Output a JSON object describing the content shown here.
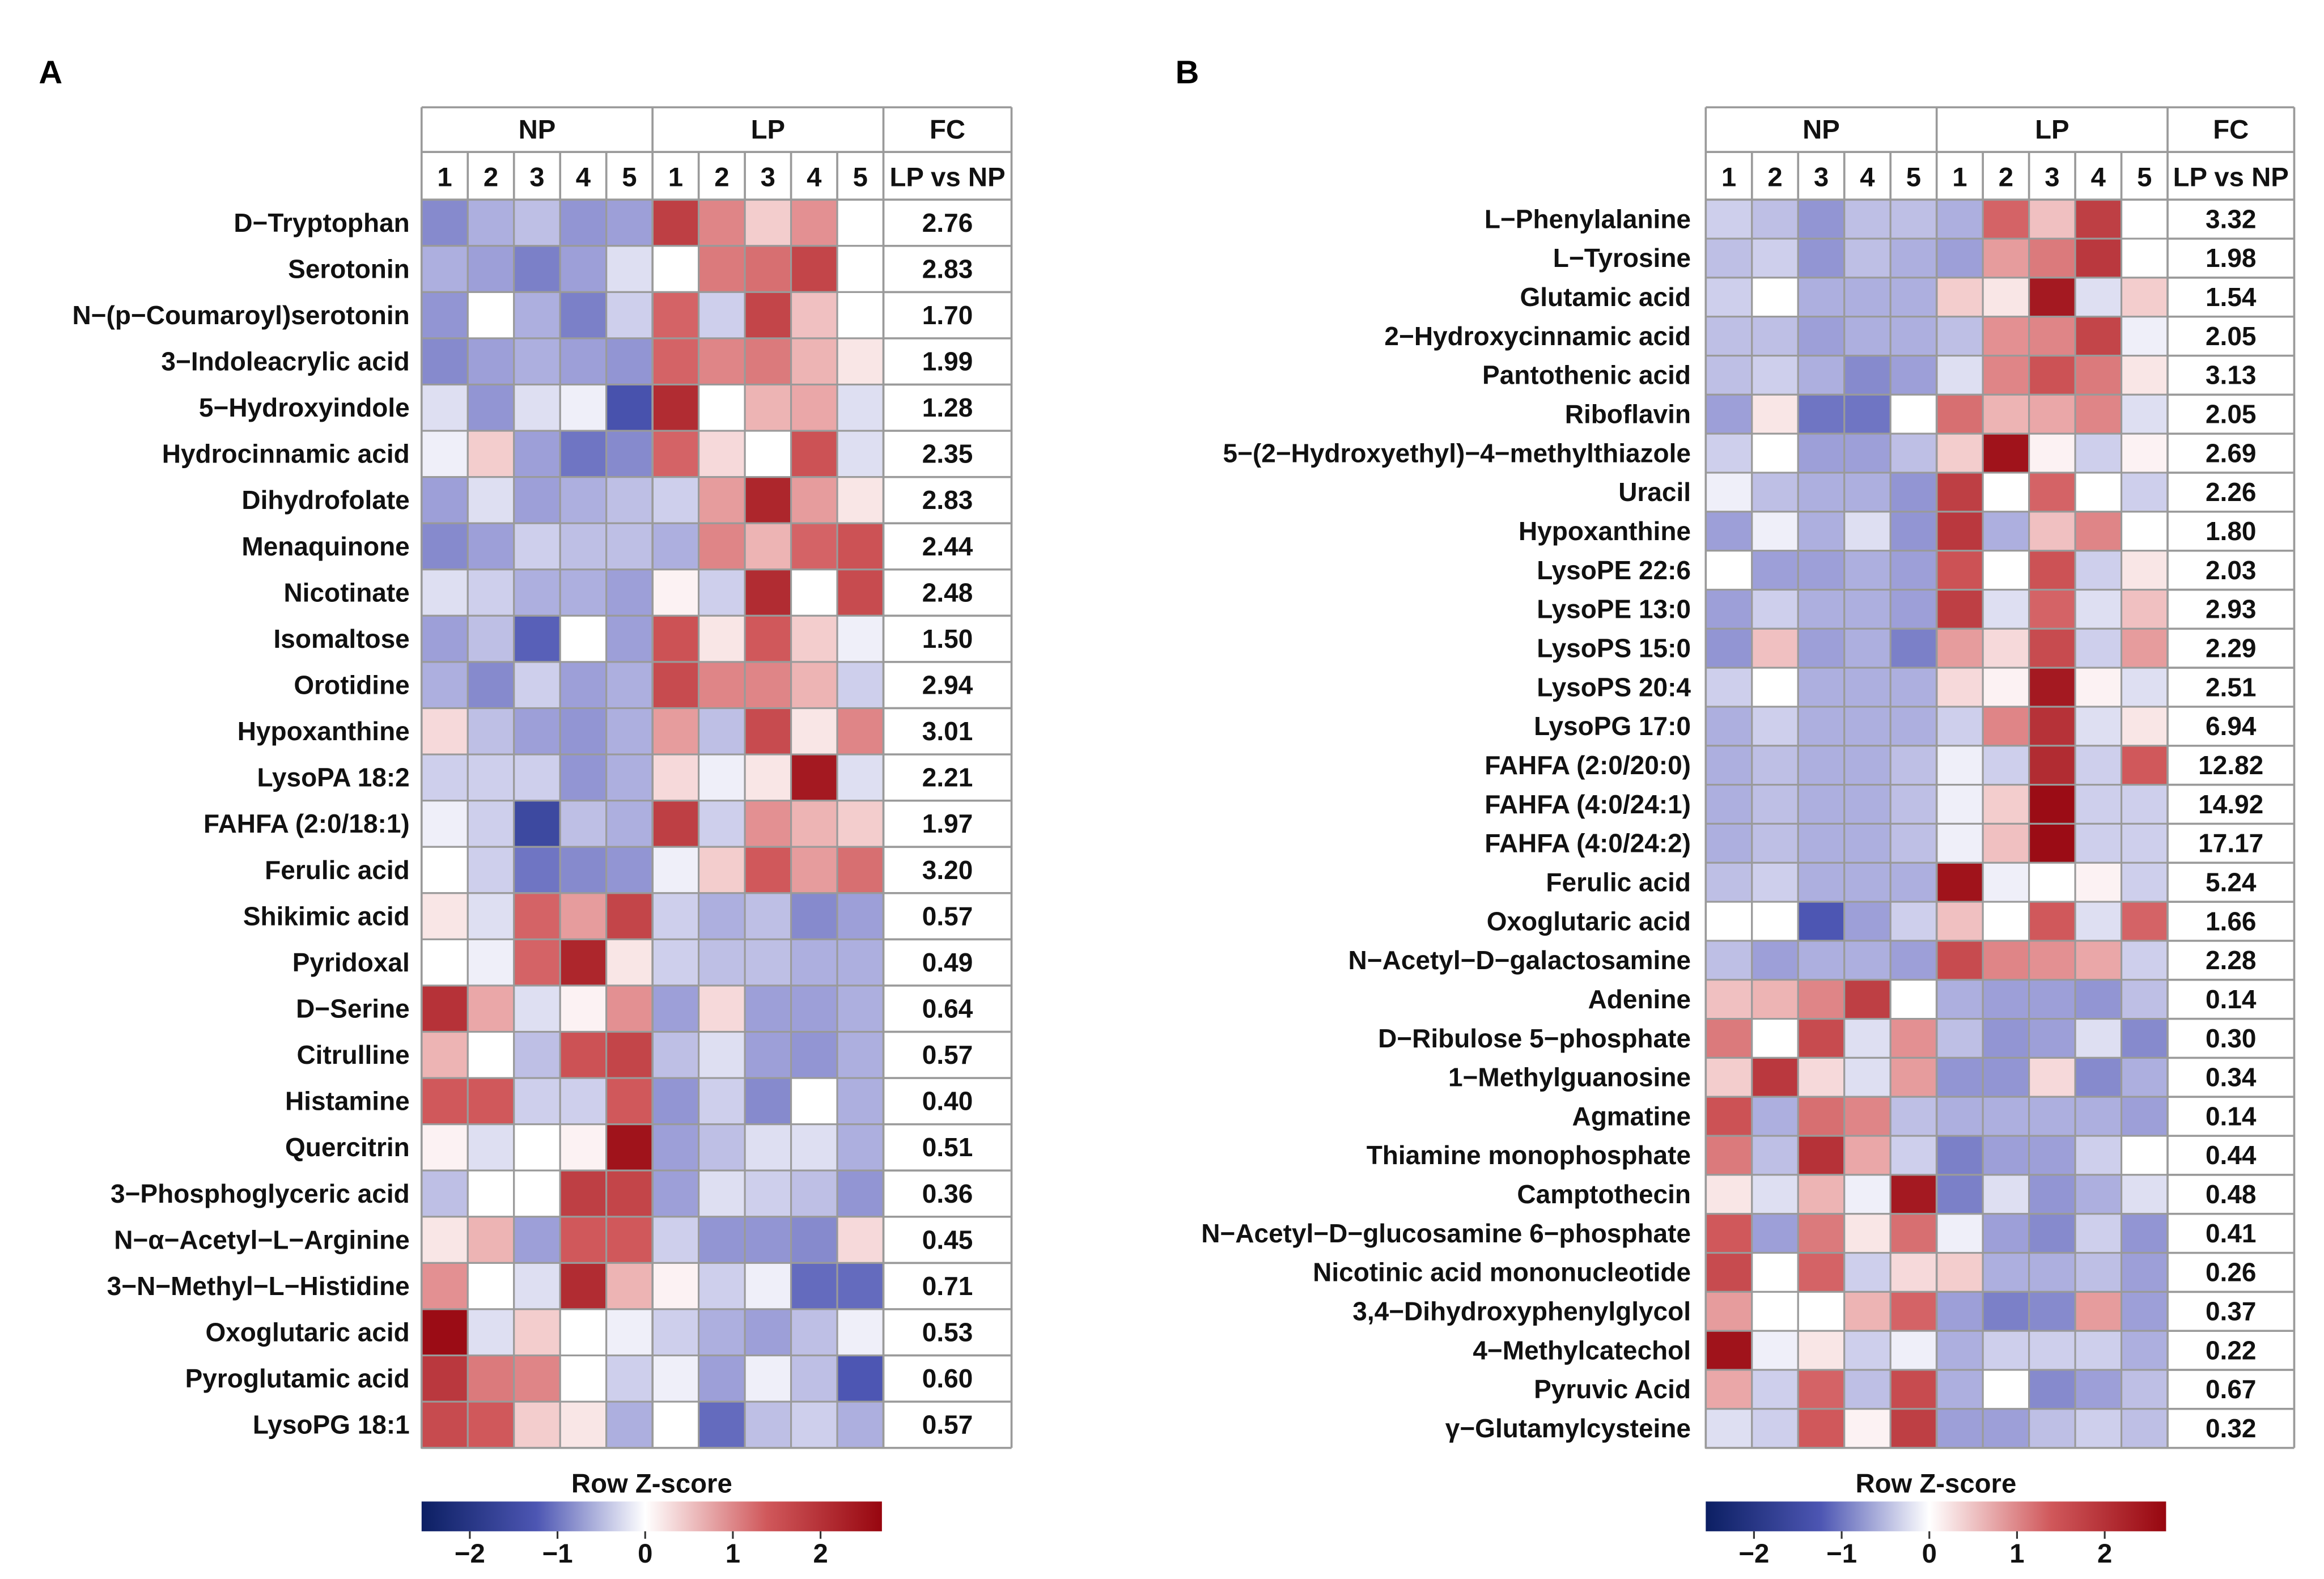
{
  "chart_data": [
    {
      "type": "heatmap",
      "panel": "A",
      "group_labels": [
        "NP",
        "LP",
        "FC"
      ],
      "column_labels": [
        "1",
        "2",
        "3",
        "4",
        "5",
        "1",
        "2",
        "3",
        "4",
        "5"
      ],
      "fc_header": "LP vs NP",
      "legend": {
        "title": "Row Z-score",
        "ticks": [
          "−2",
          "−1",
          "0",
          "1",
          "2"
        ],
        "tick_values": [
          -2,
          -1,
          0,
          1,
          2
        ],
        "range": [
          -2.55,
          2.7
        ]
      },
      "rows": [
        {
          "name": "D−Tryptophan",
          "fc": "2.76",
          "z": [
            -0.8,
            -0.5,
            -0.4,
            -0.7,
            -0.6,
            1.8,
            1.0,
            0.4,
            0.9,
            0.0
          ]
        },
        {
          "name": "Serotonin",
          "fc": "2.83",
          "z": [
            -0.5,
            -0.6,
            -0.9,
            -0.6,
            -0.2,
            0.0,
            1.1,
            1.2,
            1.7,
            0.0
          ]
        },
        {
          "name": "N−(p−Coumaroyl)serotonin",
          "fc": "1.70",
          "z": [
            -0.7,
            0.0,
            -0.5,
            -0.9,
            -0.3,
            1.3,
            -0.3,
            1.7,
            0.5,
            0.0
          ]
        },
        {
          "name": "3−Indoleacrylic acid",
          "fc": "1.99",
          "z": [
            -0.8,
            -0.6,
            -0.5,
            -0.6,
            -0.7,
            1.3,
            1.0,
            1.1,
            0.6,
            0.2
          ]
        },
        {
          "name": "5−Hydroxyindole",
          "fc": "1.28",
          "z": [
            -0.2,
            -0.7,
            -0.2,
            -0.1,
            -1.4,
            2.1,
            0.0,
            0.6,
            0.7,
            -0.2
          ]
        },
        {
          "name": "Hydrocinnamic acid",
          "fc": "2.35",
          "z": [
            -0.1,
            0.4,
            -0.6,
            -1.0,
            -0.8,
            1.3,
            0.3,
            0.0,
            1.5,
            -0.2
          ]
        },
        {
          "name": "Dihydrofolate",
          "fc": "2.83",
          "z": [
            -0.6,
            -0.2,
            -0.6,
            -0.5,
            -0.4,
            -0.3,
            0.8,
            2.2,
            0.8,
            0.2
          ]
        },
        {
          "name": "Menaquinone",
          "fc": "2.44",
          "z": [
            -0.8,
            -0.6,
            -0.3,
            -0.4,
            -0.4,
            -0.5,
            1.0,
            0.6,
            1.3,
            1.5
          ]
        },
        {
          "name": "Nicotinate",
          "fc": "2.48",
          "z": [
            -0.2,
            -0.3,
            -0.5,
            -0.5,
            -0.6,
            0.1,
            -0.3,
            2.1,
            0.0,
            1.6
          ]
        },
        {
          "name": "Isomaltose",
          "fc": "1.50",
          "z": [
            -0.6,
            -0.4,
            -1.2,
            0.0,
            -0.6,
            1.5,
            0.2,
            1.4,
            0.4,
            -0.1
          ]
        },
        {
          "name": "Orotidine",
          "fc": "2.94",
          "z": [
            -0.5,
            -0.8,
            -0.3,
            -0.6,
            -0.5,
            1.6,
            1.0,
            1.0,
            0.6,
            -0.3
          ]
        },
        {
          "name": "Hypoxanthine",
          "fc": "3.01",
          "z": [
            0.3,
            -0.4,
            -0.6,
            -0.7,
            -0.5,
            0.8,
            -0.4,
            1.6,
            0.2,
            1.0
          ]
        },
        {
          "name": "LysoPA 18:2",
          "fc": "2.21",
          "z": [
            -0.3,
            -0.3,
            -0.3,
            -0.7,
            -0.5,
            0.3,
            -0.1,
            0.2,
            2.4,
            -0.2
          ]
        },
        {
          "name": "FAHFA (2:0/18:1)",
          "fc": "1.97",
          "z": [
            -0.1,
            -0.3,
            -1.6,
            -0.4,
            -0.5,
            1.8,
            -0.3,
            0.9,
            0.6,
            0.4
          ]
        },
        {
          "name": "Ferulic acid",
          "fc": "3.20",
          "z": [
            0.0,
            -0.3,
            -1.0,
            -0.8,
            -0.7,
            -0.1,
            0.4,
            1.4,
            0.8,
            1.2
          ]
        },
        {
          "name": "Shikimic acid",
          "fc": "0.57",
          "z": [
            0.2,
            -0.2,
            1.3,
            0.8,
            1.7,
            -0.3,
            -0.5,
            -0.4,
            -0.8,
            -0.6
          ]
        },
        {
          "name": "Pyridoxal",
          "fc": "0.49",
          "z": [
            0.0,
            -0.1,
            1.3,
            2.2,
            0.2,
            -0.3,
            -0.4,
            -0.4,
            -0.5,
            -0.5
          ]
        },
        {
          "name": "D−Serine",
          "fc": "0.64",
          "z": [
            2.0,
            0.7,
            -0.2,
            0.1,
            0.9,
            -0.6,
            0.3,
            -0.6,
            -0.6,
            -0.5
          ]
        },
        {
          "name": "Citrulline",
          "fc": "0.57",
          "z": [
            0.6,
            0.0,
            -0.4,
            1.5,
            1.7,
            -0.4,
            -0.2,
            -0.6,
            -0.7,
            -0.5
          ]
        },
        {
          "name": "Histamine",
          "fc": "0.40",
          "z": [
            1.4,
            1.4,
            -0.3,
            -0.3,
            1.4,
            -0.7,
            -0.3,
            -0.8,
            0.0,
            -0.5
          ]
        },
        {
          "name": "Quercitrin",
          "fc": "0.51",
          "z": [
            0.1,
            -0.2,
            0.0,
            0.1,
            2.5,
            -0.6,
            -0.4,
            -0.2,
            -0.2,
            -0.5
          ]
        },
        {
          "name": "3−Phosphoglyceric acid",
          "fc": "0.36",
          "z": [
            -0.4,
            0.0,
            0.0,
            1.8,
            1.7,
            -0.6,
            -0.2,
            -0.3,
            -0.4,
            -0.7
          ]
        },
        {
          "name": "N−α−Acetyl−L−Arginine",
          "fc": "0.45",
          "z": [
            0.2,
            0.6,
            -0.6,
            1.4,
            1.4,
            -0.3,
            -0.7,
            -0.7,
            -0.8,
            0.3
          ]
        },
        {
          "name": "3−N−Methyl−L−Histidine",
          "fc": "0.71",
          "z": [
            0.9,
            0.0,
            -0.2,
            2.1,
            0.6,
            0.1,
            -0.3,
            -0.1,
            -1.1,
            -1.1
          ]
        },
        {
          "name": "Oxoglutaric acid",
          "fc": "0.53",
          "z": [
            2.6,
            -0.2,
            0.4,
            0.0,
            -0.1,
            -0.3,
            -0.5,
            -0.6,
            -0.4,
            -0.1
          ]
        },
        {
          "name": "Pyroglutamic acid",
          "fc": "0.60",
          "z": [
            1.9,
            1.1,
            1.0,
            0.0,
            -0.3,
            -0.1,
            -0.6,
            -0.1,
            -0.4,
            -1.3
          ]
        },
        {
          "name": "LysoPG 18:1",
          "fc": "0.57",
          "z": [
            1.6,
            1.4,
            0.4,
            0.2,
            -0.5,
            0.0,
            -1.1,
            -0.4,
            -0.3,
            -0.5
          ]
        }
      ]
    },
    {
      "type": "heatmap",
      "panel": "B",
      "group_labels": [
        "NP",
        "LP",
        "FC"
      ],
      "column_labels": [
        "1",
        "2",
        "3",
        "4",
        "5",
        "1",
        "2",
        "3",
        "4",
        "5"
      ],
      "fc_header": "LP vs NP",
      "legend": {
        "title": "Row Z-score",
        "ticks": [
          "−2",
          "−1",
          "0",
          "1",
          "2"
        ],
        "tick_values": [
          -2,
          -1,
          0,
          1,
          2
        ],
        "range": [
          -2.55,
          2.7
        ]
      },
      "rows": [
        {
          "name": "L−Phenylalanine",
          "fc": "3.32",
          "z": [
            -0.3,
            -0.4,
            -0.7,
            -0.4,
            -0.4,
            -0.5,
            1.3,
            0.5,
            1.8,
            0.0
          ]
        },
        {
          "name": "L−Tyrosine",
          "fc": "1.98",
          "z": [
            -0.4,
            -0.3,
            -0.7,
            -0.4,
            -0.5,
            -0.6,
            0.8,
            1.1,
            1.9,
            0.0
          ]
        },
        {
          "name": "Glutamic acid",
          "fc": "1.54",
          "z": [
            -0.3,
            0.0,
            -0.5,
            -0.5,
            -0.5,
            0.4,
            0.2,
            2.4,
            -0.2,
            0.4
          ]
        },
        {
          "name": "2−Hydroxycinnamic acid",
          "fc": "2.05",
          "z": [
            -0.4,
            -0.4,
            -0.6,
            -0.5,
            -0.5,
            -0.4,
            0.9,
            1.0,
            1.7,
            -0.1
          ]
        },
        {
          "name": "Pantothenic acid",
          "fc": "3.13",
          "z": [
            -0.4,
            -0.3,
            -0.5,
            -0.8,
            -0.6,
            -0.2,
            1.0,
            1.5,
            1.1,
            0.2
          ]
        },
        {
          "name": "Riboflavin",
          "fc": "2.05",
          "z": [
            -0.6,
            0.2,
            -1.0,
            -1.0,
            0.0,
            1.2,
            0.6,
            0.7,
            1.0,
            -0.2
          ]
        },
        {
          "name": "5−(2−Hydroxyethyl)−4−methylthiazole",
          "fc": "2.69",
          "z": [
            -0.3,
            0.0,
            -0.6,
            -0.6,
            -0.4,
            0.4,
            2.5,
            0.1,
            -0.3,
            0.1
          ]
        },
        {
          "name": "Uracil",
          "fc": "2.26",
          "z": [
            -0.1,
            -0.4,
            -0.5,
            -0.5,
            -0.7,
            1.8,
            0.0,
            1.3,
            0.0,
            -0.3
          ]
        },
        {
          "name": "Hypoxanthine",
          "fc": "1.80",
          "z": [
            -0.6,
            -0.1,
            -0.5,
            -0.2,
            -0.7,
            1.9,
            -0.5,
            0.5,
            1.0,
            0.0
          ]
        },
        {
          "name": "LysoPE 22:6",
          "fc": "2.03",
          "z": [
            0.0,
            -0.6,
            -0.6,
            -0.5,
            -0.6,
            1.5,
            0.0,
            1.5,
            -0.3,
            0.2
          ]
        },
        {
          "name": "LysoPE 13:0",
          "fc": "2.93",
          "z": [
            -0.6,
            -0.3,
            -0.5,
            -0.5,
            -0.6,
            1.8,
            -0.2,
            1.3,
            -0.2,
            0.5
          ]
        },
        {
          "name": "LysoPS 15:0",
          "fc": "2.29",
          "z": [
            -0.7,
            0.5,
            -0.6,
            -0.5,
            -0.9,
            0.8,
            0.3,
            1.6,
            -0.3,
            0.8
          ]
        },
        {
          "name": "LysoPS 20:4",
          "fc": "2.51",
          "z": [
            -0.3,
            0.0,
            -0.5,
            -0.5,
            -0.5,
            0.3,
            0.1,
            2.4,
            0.1,
            -0.2
          ]
        },
        {
          "name": "LysoPG 17:0",
          "fc": "6.94",
          "z": [
            -0.5,
            -0.3,
            -0.5,
            -0.5,
            -0.5,
            -0.3,
            1.0,
            2.0,
            -0.2,
            0.2
          ]
        },
        {
          "name": "FAHFA (2:0/20:0)",
          "fc": "12.82",
          "z": [
            -0.5,
            -0.4,
            -0.5,
            -0.5,
            -0.4,
            -0.1,
            -0.3,
            2.1,
            -0.3,
            1.4
          ]
        },
        {
          "name": "FAHFA (4:0/24:1)",
          "fc": "14.92",
          "z": [
            -0.5,
            -0.4,
            -0.5,
            -0.5,
            -0.4,
            -0.1,
            0.4,
            2.6,
            -0.3,
            -0.3
          ]
        },
        {
          "name": "FAHFA (4:0/24:2)",
          "fc": "17.17",
          "z": [
            -0.5,
            -0.4,
            -0.5,
            -0.5,
            -0.4,
            -0.1,
            0.5,
            2.6,
            -0.3,
            -0.3
          ]
        },
        {
          "name": "Ferulic acid",
          "fc": "5.24",
          "z": [
            -0.4,
            -0.3,
            -0.5,
            -0.5,
            -0.5,
            2.5,
            -0.1,
            0.0,
            0.1,
            -0.3
          ]
        },
        {
          "name": "Oxoglutaric acid",
          "fc": "1.66",
          "z": [
            0.0,
            0.0,
            -1.3,
            -0.6,
            -0.3,
            0.5,
            0.0,
            1.4,
            -0.2,
            1.3
          ]
        },
        {
          "name": "N−Acetyl−D−galactosamine",
          "fc": "2.28",
          "z": [
            -0.4,
            -0.6,
            -0.5,
            -0.5,
            -0.6,
            1.6,
            1.0,
            0.9,
            0.7,
            -0.3
          ]
        },
        {
          "name": "Adenine",
          "fc": "0.14",
          "z": [
            0.5,
            0.6,
            1.0,
            1.8,
            0.0,
            -0.5,
            -0.6,
            -0.6,
            -0.7,
            -0.4
          ]
        },
        {
          "name": "D−Ribulose 5−phosphate",
          "fc": "0.30",
          "z": [
            1.1,
            0.0,
            1.6,
            -0.2,
            0.9,
            -0.4,
            -0.7,
            -0.6,
            -0.2,
            -0.8
          ]
        },
        {
          "name": "1−Methylguanosine",
          "fc": "0.34",
          "z": [
            0.4,
            1.9,
            0.3,
            -0.2,
            0.8,
            -0.7,
            -0.7,
            0.3,
            -0.8,
            -0.5
          ]
        },
        {
          "name": "Agmatine",
          "fc": "0.14",
          "z": [
            1.5,
            -0.5,
            1.2,
            1.0,
            -0.4,
            -0.5,
            -0.5,
            -0.5,
            -0.5,
            -0.6
          ]
        },
        {
          "name": "Thiamine monophosphate",
          "fc": "0.44",
          "z": [
            1.1,
            -0.4,
            2.0,
            0.7,
            -0.3,
            -0.9,
            -0.6,
            -0.6,
            -0.3,
            0.0
          ]
        },
        {
          "name": "Camptothecin",
          "fc": "0.48",
          "z": [
            0.2,
            -0.2,
            0.6,
            -0.1,
            2.4,
            -0.9,
            -0.2,
            -0.7,
            -0.5,
            -0.2
          ]
        },
        {
          "name": "N−Acetyl−D−glucosamine 6−phosphate",
          "fc": "0.41",
          "z": [
            1.4,
            -0.6,
            1.1,
            0.2,
            1.2,
            -0.1,
            -0.6,
            -0.8,
            -0.3,
            -0.7
          ]
        },
        {
          "name": "Nicotinic acid mononucleotide",
          "fc": "0.26",
          "z": [
            1.6,
            0.0,
            1.3,
            -0.3,
            0.3,
            0.4,
            -0.5,
            -0.5,
            -0.4,
            -0.6
          ]
        },
        {
          "name": "3,4−Dihydroxyphenylglycol",
          "fc": "0.37",
          "z": [
            0.8,
            0.0,
            0.0,
            0.6,
            1.3,
            -0.6,
            -0.9,
            -0.8,
            0.8,
            -0.6
          ]
        },
        {
          "name": "4−Methylcatechol",
          "fc": "0.22",
          "z": [
            2.5,
            -0.1,
            0.2,
            -0.3,
            -0.1,
            -0.5,
            -0.3,
            -0.3,
            -0.3,
            -0.5
          ]
        },
        {
          "name": "Pyruvic Acid",
          "fc": "0.67",
          "z": [
            0.7,
            -0.3,
            1.3,
            -0.4,
            1.6,
            -0.5,
            0.0,
            -0.8,
            -0.6,
            -0.4
          ]
        },
        {
          "name": "γ−Glutamylcysteine",
          "fc": "0.32",
          "z": [
            -0.2,
            -0.3,
            1.4,
            0.1,
            1.8,
            -0.6,
            -0.6,
            -0.4,
            -0.3,
            -0.4
          ]
        }
      ]
    }
  ],
  "colors": {
    "low": "#0c1f63",
    "mid_low": "#6a6cc6",
    "zero": "#ffffff",
    "mid_high": "#d0585b",
    "high": "#97060f",
    "grid": "#9a9a9a"
  }
}
